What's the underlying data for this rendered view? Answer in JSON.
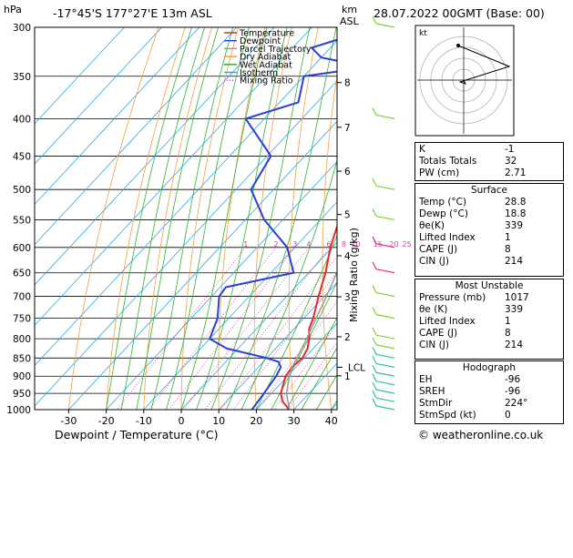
{
  "header": {
    "hpa": "hPa",
    "location": "-17°45'S  177°27'E  13m  ASL",
    "km": "km",
    "asl": "ASL",
    "datetime": "28.07.2022  00GMT  (Base: 00)"
  },
  "chart_data": {
    "type": "line",
    "xlabel": "Dewpoint / Temperature (°C)",
    "ylabel": "hPa",
    "mixing_ratio_label": "Mixing Ratio (g/kg)",
    "x_ticks": [
      -30,
      -20,
      -10,
      0,
      10,
      20,
      30,
      40
    ],
    "pressure_ticks": [
      300,
      350,
      400,
      450,
      500,
      550,
      600,
      650,
      700,
      750,
      800,
      850,
      900,
      950,
      1000
    ],
    "km_ticks": [
      {
        "label": "8",
        "p": 357
      },
      {
        "label": "7",
        "p": 411
      },
      {
        "label": "6",
        "p": 472
      },
      {
        "label": "5",
        "p": 541
      },
      {
        "label": "4",
        "p": 616
      },
      {
        "label": "3",
        "p": 701
      },
      {
        "label": "2",
        "p": 795
      },
      {
        "label": "1",
        "p": 899
      }
    ],
    "lcl_label": "LCL",
    "lcl_p": 875,
    "mixing_ratio_values": [
      "1",
      "2",
      "3",
      "4",
      "6",
      "8",
      "10",
      "15",
      "20",
      "25"
    ],
    "legend": [
      "Temperature",
      "Dewpoint",
      "Parcel Trajectory",
      "Dry Adiabat",
      "Wet Adiabat",
      "Isotherm",
      "Mixing Ratio"
    ],
    "series": [
      {
        "name": "Temperature",
        "color": "#e8282c",
        "points": [
          [
            1000,
            28.8
          ],
          [
            975,
            25
          ],
          [
            950,
            22.5
          ],
          [
            925,
            21
          ],
          [
            900,
            19.5
          ],
          [
            875,
            19
          ],
          [
            850,
            19.5
          ],
          [
            825,
            18.5
          ],
          [
            800,
            16.5
          ],
          [
            775,
            14
          ],
          [
            750,
            12.5
          ],
          [
            700,
            8.5
          ],
          [
            650,
            4.5
          ],
          [
            600,
            -0.5
          ],
          [
            550,
            -5
          ],
          [
            500,
            -9.5
          ],
          [
            450,
            -15.5
          ],
          [
            400,
            -23
          ],
          [
            350,
            -31
          ],
          [
            300,
            -39
          ]
        ]
      },
      {
        "name": "Dewpoint",
        "color": "#2a3fd8",
        "points": [
          [
            1000,
            18.8
          ],
          [
            950,
            18
          ],
          [
            900,
            17
          ],
          [
            875,
            16
          ],
          [
            860,
            14
          ],
          [
            850,
            10
          ],
          [
            825,
            -3
          ],
          [
            800,
            -10
          ],
          [
            750,
            -13
          ],
          [
            700,
            -18
          ],
          [
            680,
            -18.5
          ],
          [
            650,
            -4
          ],
          [
            600,
            -12
          ],
          [
            550,
            -25
          ],
          [
            500,
            -36
          ],
          [
            450,
            -39
          ],
          [
            400,
            -55
          ],
          [
            380,
            -45
          ],
          [
            350,
            -50
          ],
          [
            340,
            -35
          ],
          [
            330,
            -50
          ],
          [
            320,
            -55
          ],
          [
            310,
            -49
          ],
          [
            300,
            -48
          ]
        ]
      },
      {
        "name": "Parcel Trajectory",
        "color": "#999999",
        "points": [
          [
            1000,
            28.8
          ],
          [
            950,
            24
          ],
          [
            900,
            20.5
          ],
          [
            875,
            19
          ],
          [
            850,
            18
          ],
          [
            800,
            15.8
          ],
          [
            750,
            13.3
          ],
          [
            700,
            10.6
          ],
          [
            650,
            7.5
          ],
          [
            600,
            4
          ],
          [
            550,
            -0.2
          ],
          [
            500,
            -5
          ],
          [
            450,
            -10.7
          ],
          [
            400,
            -17.4
          ],
          [
            350,
            -25.5
          ],
          [
            300,
            -35.5
          ]
        ]
      }
    ],
    "wind_barbs_p": [
      1000,
      975,
      950,
      925,
      900,
      875,
      850,
      825,
      800,
      750,
      700,
      650,
      600,
      550,
      500,
      400,
      300
    ]
  },
  "hodograph": {
    "kt_label": "kt"
  },
  "indices": [
    {
      "label": "K",
      "value": "-1"
    },
    {
      "label": "Totals Totals",
      "value": "32"
    },
    {
      "label": "PW (cm)",
      "value": "2.71"
    }
  ],
  "surface": {
    "title": "Surface",
    "rows": [
      {
        "label": "Temp (°C)",
        "value": "28.8"
      },
      {
        "label": "Dewp (°C)",
        "value": "18.8"
      },
      {
        "label": "θe(K)",
        "value": "339"
      },
      {
        "label": "Lifted Index",
        "value": "1"
      },
      {
        "label": "CAPE (J)",
        "value": "8"
      },
      {
        "label": "CIN (J)",
        "value": "214"
      }
    ]
  },
  "most_unstable": {
    "title": "Most Unstable",
    "rows": [
      {
        "label": "Pressure (mb)",
        "value": "1017"
      },
      {
        "label": "θe (K)",
        "value": "339"
      },
      {
        "label": "Lifted Index",
        "value": "1"
      },
      {
        "label": "CAPE (J)",
        "value": "8"
      },
      {
        "label": "CIN (J)",
        "value": "214"
      }
    ]
  },
  "hodo_table": {
    "title": "Hodograph",
    "rows": [
      {
        "label": "EH",
        "value": "-96"
      },
      {
        "label": "SREH",
        "value": "-96"
      },
      {
        "label": "StmDir",
        "value": "224°"
      },
      {
        "label": "StmSpd (kt)",
        "value": "0"
      }
    ]
  },
  "credit": "© weatheronline.co.uk",
  "colors": {
    "temperature": "#e8282c",
    "dewpoint": "#2a3fd8",
    "parcel": "#999999",
    "dry_adiabat": "#f0a040",
    "wet_adiabat": "#30b030",
    "isotherm": "#30a8e0",
    "mixing_ratio": "#d040a0"
  }
}
